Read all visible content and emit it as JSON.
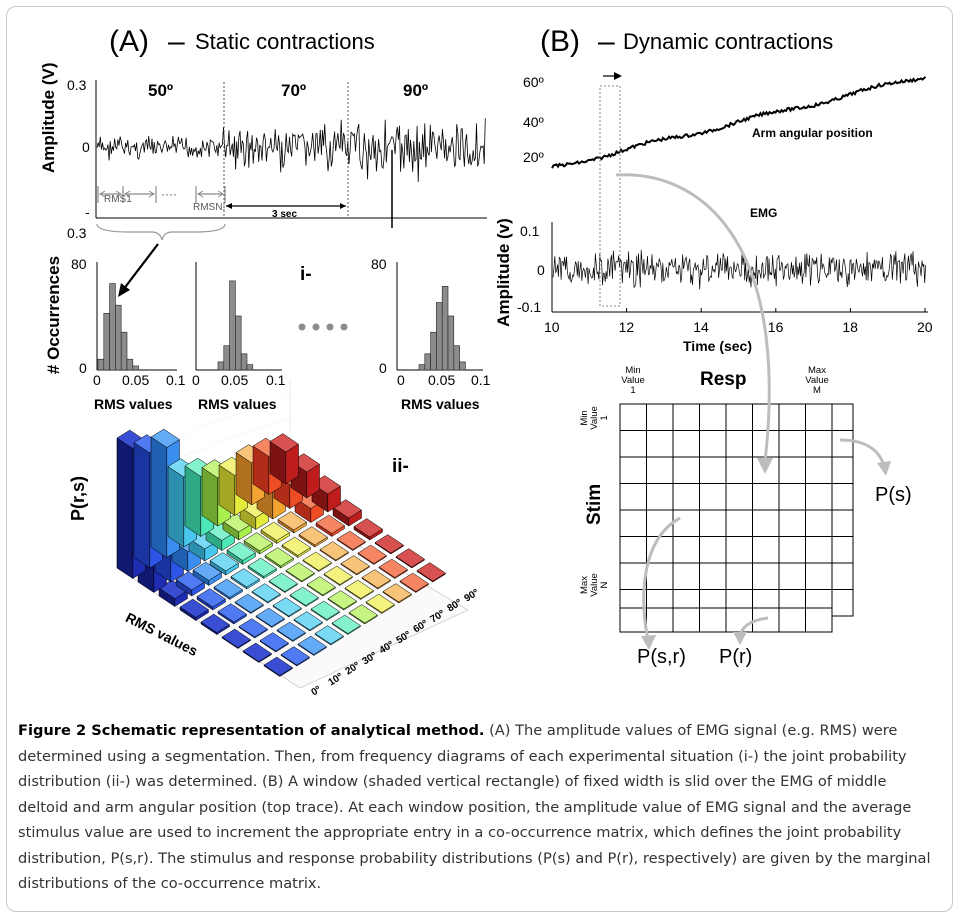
{
  "panel_a": {
    "title_prefix": "(A)",
    "title_dash": "–",
    "title_text": "Static contractions",
    "ylabel": "Amplitude (V)",
    "ytick_top": "0.3",
    "ytick_mid": "0",
    "ytick_bottom": "-",
    "ytick_bottom2": "0.3",
    "segments": [
      "50º",
      "70º",
      "90º"
    ],
    "rms_first": "RMS1",
    "rms_dots": "····",
    "rms_last": "RMSN:",
    "window_label": "3 sec",
    "hist_ylabel": "# Occurrences",
    "hist_ytick_top": "80",
    "hist_ytick_bottom": "0",
    "hist_xticks": [
      "0",
      "0.05",
      "0.1"
    ],
    "hist_xlabel": "RMS values",
    "marker_i": "i-",
    "marker_ii": "ii-",
    "bar3d_zlabel": "P(r,s)",
    "bar3d_xlabel": "RMS values",
    "bar3d_angles": [
      "0º",
      "10º",
      "20º",
      "30º",
      "40º",
      "50º",
      "60º",
      "70º",
      "80º",
      "90º"
    ]
  },
  "panel_b": {
    "title_prefix": "(B)",
    "title_dash": "–",
    "title_text": "Dynamic contractions",
    "angle_ticks": [
      "60º",
      "40º",
      "20º"
    ],
    "angle_trace_label": "Arm angular position",
    "emg_label": "EMG",
    "ylabel": "Amplitude (v)",
    "yticks": [
      "0.1",
      "0",
      "-0.1"
    ],
    "xticks": [
      "10",
      "12",
      "14",
      "16",
      "18",
      "20"
    ],
    "xlabel": "Time (sec)",
    "matrix": {
      "resp_label": "Resp",
      "stim_label": "Stim",
      "min_value_col": "Min Value 1",
      "max_value_col": "Max Value M",
      "min_value_row": "Min Value 1",
      "max_value_row": "Max Value N",
      "ps_label": "P(s)",
      "psr_label": "P(s,r)",
      "pr_label": "P(r)"
    }
  },
  "caption": {
    "title": "Figure 2 Schematic representation of analytical method.",
    "body": "(A) The amplitude values of EMG signal (e.g. RMS) were determined using a segmentation. Then, from frequency diagrams of each experimental situation (i-) the joint probability distribution (ii-) was determined. (B) A window (shaded vertical rectangle) of fixed width is slid over the EMG of middle deltoid and arm angular position (top trace). At each window position, the amplitude value of EMG signal and the average stimulus value are used to increment the appropriate entry in a co-occurrence matrix, which defines the joint probability distribution, P(s,r). The stimulus and response probability distributions (P(s) and P(r), respectively) are given by the marginal distributions of the co-occurrence matrix."
  }
}
